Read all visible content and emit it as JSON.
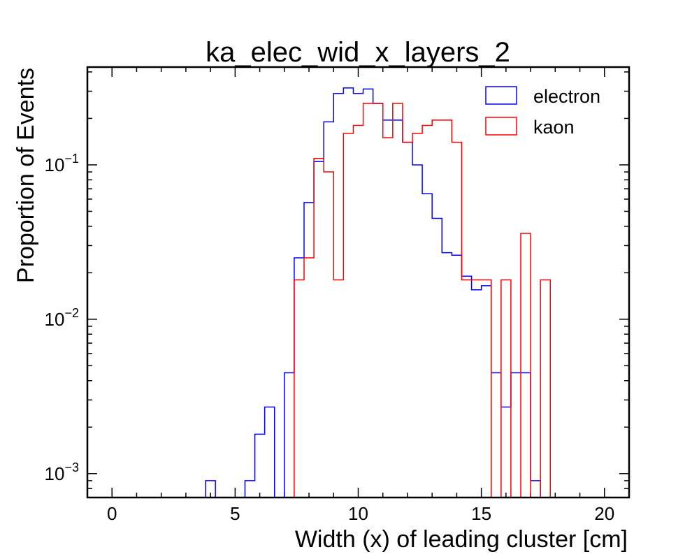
{
  "chart_data": {
    "type": "histogram",
    "title": "ka_elec_wid_x_layers_2",
    "xlabel": "Width (x) of leading cluster [cm]",
    "ylabel": "Proportion of Events",
    "xlim": [
      -1,
      21
    ],
    "ylim": [
      0.0007,
      0.43
    ],
    "yscale": "log",
    "grid": false,
    "legend_position": "top-right",
    "bin_edges_start": -1,
    "bin_width": 0.4,
    "xticks": [
      0,
      5,
      10,
      15,
      20
    ],
    "yticks": [
      {
        "value": 0.001,
        "base": "10",
        "exp": "−3"
      },
      {
        "value": 0.01,
        "base": "10",
        "exp": "−2"
      },
      {
        "value": 0.1,
        "base": "10",
        "exp": "−1"
      }
    ],
    "series": [
      {
        "name": "electron",
        "color": "#0000ff",
        "values": [
          0,
          0,
          0,
          0,
          0,
          0,
          0,
          0,
          0,
          0,
          0,
          0,
          0.0009,
          0,
          0,
          0,
          0.0009,
          0.0018,
          0.0027,
          0,
          0.0045,
          0.025,
          0.057,
          0.105,
          0.19,
          0.29,
          0.315,
          0.29,
          0.31,
          0.25,
          0.195,
          0.195,
          0.14,
          0.1,
          0.065,
          0.045,
          0.027,
          0.026,
          0.019,
          0.0155,
          0.0165,
          0.0045,
          0.0027,
          0.0045,
          0.0045,
          0.0009,
          0,
          0,
          0,
          0,
          0,
          0,
          0,
          0,
          0
        ]
      },
      {
        "name": "kaon",
        "color": "#ff0000",
        "values": [
          0,
          0,
          0,
          0,
          0,
          0,
          0,
          0,
          0,
          0,
          0,
          0,
          0,
          0,
          0,
          0,
          0,
          0,
          0,
          0,
          0,
          0.018,
          0.025,
          0.11,
          0.09,
          0.018,
          0.16,
          0.18,
          0.25,
          0.25,
          0.15,
          0.25,
          0.14,
          0.16,
          0.18,
          0.195,
          0.195,
          0.14,
          0.018,
          0.018,
          0.018,
          0,
          0.018,
          0,
          0.036,
          0,
          0.018,
          0,
          0,
          0,
          0,
          0,
          0,
          0,
          0
        ]
      }
    ]
  }
}
